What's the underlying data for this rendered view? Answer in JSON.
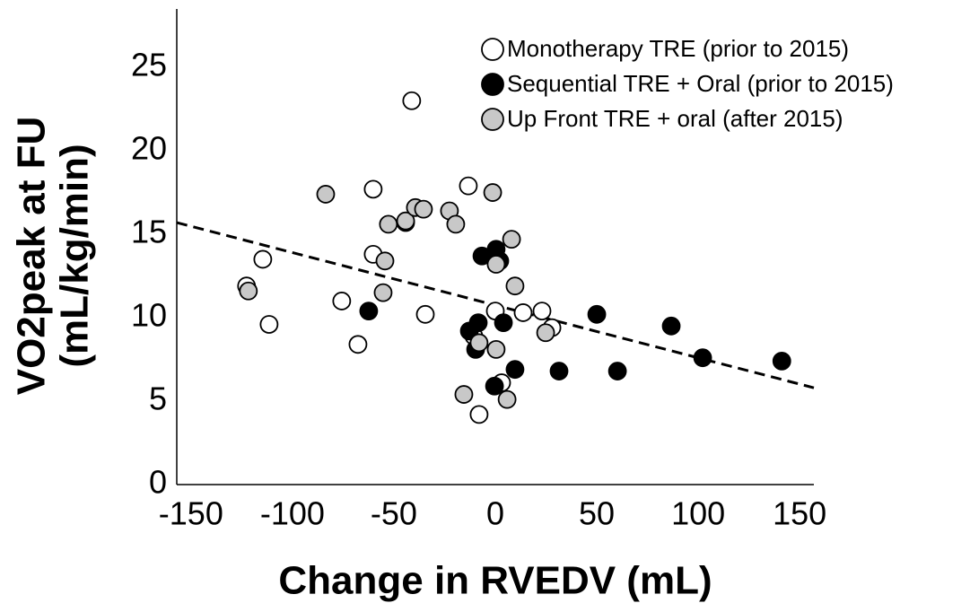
{
  "chart_data": {
    "type": "scatter",
    "x_label": "Change in RVEDV (mL)",
    "y_label": [
      "VO2peak at FU",
      "(mL/kg/min)"
    ],
    "xlim": [
      -157,
      157
    ],
    "ylim": [
      0,
      28.5
    ],
    "xticks": [
      -150,
      -100,
      -50,
      0,
      50,
      100,
      150
    ],
    "yticks": [
      0,
      5,
      10,
      15,
      20,
      25
    ],
    "legend": "top-right",
    "series": [
      {
        "name": "Monotherapy TRE (prior to 2015)",
        "color": "#ffffff",
        "x": [
          -41.2,
          -60.2,
          -13.3,
          -114.6,
          -60.2,
          -122.6,
          -75.7,
          -111.5,
          -34.5,
          -67.7,
          0,
          13.7,
          23,
          27.9,
          -10.6,
          -8,
          3.1
        ],
        "values": [
          23.0,
          17.7,
          17.9,
          13.5,
          13.8,
          11.9,
          11.0,
          9.6,
          10.2,
          8.4,
          10.4,
          10.3,
          10.4,
          9.4,
          8.9,
          4.2,
          6.1
        ]
      },
      {
        "name": "Sequential TRE + Oral (prior to 2015)",
        "color": "#000000",
        "x": [
          -44.2,
          -6.6,
          0.4,
          2.2,
          -62.4,
          -12.8,
          -8.4,
          4,
          -9.7,
          9.7,
          31.4,
          -0.4,
          50,
          60.2,
          86.7,
          102.2,
          141.2
        ],
        "values": [
          15.7,
          13.7,
          14.1,
          13.4,
          10.4,
          9.2,
          9.7,
          9.7,
          8.1,
          6.9,
          6.8,
          5.9,
          10.2,
          6.8,
          9.5,
          7.6,
          7.4
        ]
      },
      {
        "name": "Up Front TRE + oral (after 2015)",
        "color": "#c8c8c8",
        "x": [
          -83.6,
          -52.7,
          -44.2,
          -39.4,
          -35.4,
          -22.6,
          -19.5,
          -1.3,
          8,
          0.4,
          -54.4,
          -55.3,
          -121.7,
          9.7,
          24.8,
          -8,
          0.4,
          -15.5,
          5.8
        ],
        "values": [
          17.4,
          15.6,
          15.8,
          16.6,
          16.5,
          16.4,
          15.6,
          17.5,
          14.7,
          13.2,
          13.4,
          11.5,
          11.6,
          11.9,
          9.1,
          8.5,
          8.1,
          5.4,
          5.1
        ]
      }
    ],
    "trendline": {
      "x": [
        -157,
        157
      ],
      "values": [
        15.7,
        5.8
      ],
      "color": "#000000",
      "dashed": true
    }
  }
}
